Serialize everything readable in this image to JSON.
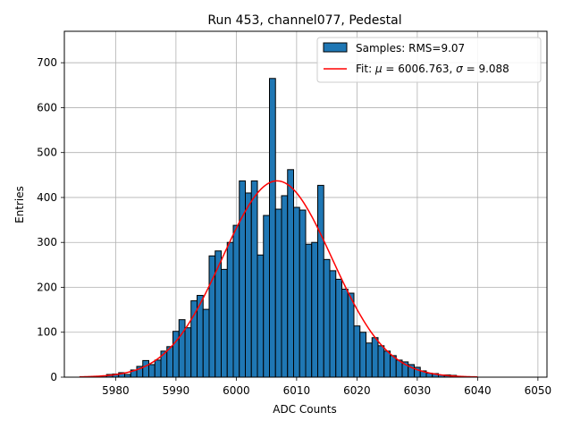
{
  "chart_data": {
    "type": "bar",
    "title": "Run 453, channel077, Pedestal",
    "xlabel": "ADC Counts",
    "ylabel": "Entries",
    "xlim": [
      5971.5,
      6051.5
    ],
    "ylim": [
      0,
      770
    ],
    "xticks": [
      5980,
      5990,
      6000,
      6010,
      6020,
      6030,
      6040,
      6050
    ],
    "yticks": [
      0,
      100,
      200,
      300,
      400,
      500,
      600,
      700
    ],
    "grid": true,
    "legend_position": "top-right",
    "bin_width": 1,
    "series": [
      {
        "name": "Samples: RMS=9.07",
        "kind": "histogram",
        "color": "#1f77b4",
        "edgecolor": "#000000",
        "bins": [
          [
            5975,
            1
          ],
          [
            5976,
            1
          ],
          [
            5977,
            2
          ],
          [
            5978,
            3
          ],
          [
            5979,
            6
          ],
          [
            5980,
            7
          ],
          [
            5981,
            10
          ],
          [
            5982,
            6
          ],
          [
            5983,
            16
          ],
          [
            5984,
            24
          ],
          [
            5985,
            37
          ],
          [
            5986,
            28
          ],
          [
            5987,
            38
          ],
          [
            5988,
            58
          ],
          [
            5989,
            68
          ],
          [
            5990,
            102
          ],
          [
            5991,
            128
          ],
          [
            5992,
            110
          ],
          [
            5993,
            170
          ],
          [
            5994,
            182
          ],
          [
            5995,
            151
          ],
          [
            5996,
            270
          ],
          [
            5997,
            281
          ],
          [
            5998,
            240
          ],
          [
            5999,
            300
          ],
          [
            6000,
            338
          ],
          [
            6001,
            437
          ],
          [
            6002,
            410
          ],
          [
            6003,
            437
          ],
          [
            6004,
            272
          ],
          [
            6005,
            360
          ],
          [
            6006,
            665
          ],
          [
            6007,
            374
          ],
          [
            6008,
            404
          ],
          [
            6009,
            462
          ],
          [
            6010,
            378
          ],
          [
            6011,
            372
          ],
          [
            6012,
            296
          ],
          [
            6013,
            300
          ],
          [
            6014,
            427
          ],
          [
            6015,
            262
          ],
          [
            6016,
            237
          ],
          [
            6017,
            218
          ],
          [
            6018,
            196
          ],
          [
            6019,
            187
          ],
          [
            6020,
            114
          ],
          [
            6021,
            100
          ],
          [
            6022,
            76
          ],
          [
            6023,
            88
          ],
          [
            6024,
            70
          ],
          [
            6025,
            58
          ],
          [
            6026,
            48
          ],
          [
            6027,
            38
          ],
          [
            6028,
            34
          ],
          [
            6029,
            28
          ],
          [
            6030,
            22
          ],
          [
            6031,
            14
          ],
          [
            6032,
            9
          ],
          [
            6033,
            8
          ],
          [
            6034,
            5
          ],
          [
            6035,
            5
          ],
          [
            6036,
            4
          ]
        ]
      },
      {
        "name_prefix": "Fit: ",
        "name_mu": "μ",
        "name_mid": " = 6006.763, ",
        "name_sigma": "σ",
        "name_suffix": " = 9.088",
        "kind": "gaussian",
        "color": "#ff0000",
        "mu": 6006.763,
        "sigma": 9.088,
        "amplitude": 437,
        "x_range": [
          5974,
          6040
        ]
      }
    ]
  }
}
